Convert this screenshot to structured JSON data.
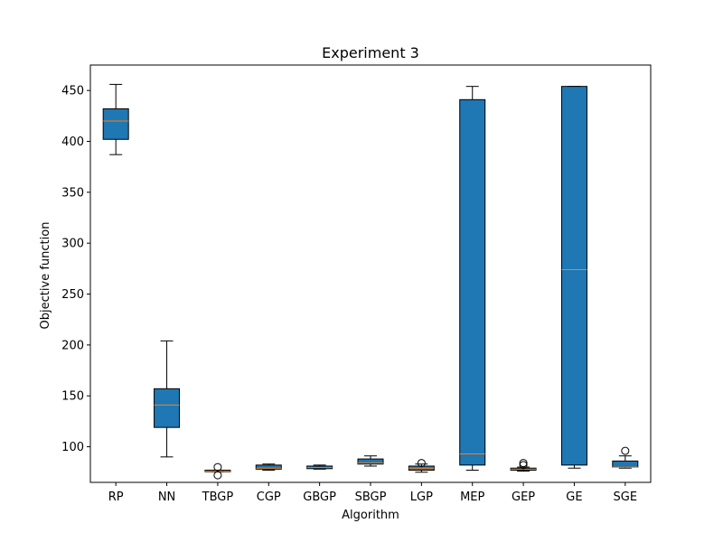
{
  "chart_data": {
    "type": "box",
    "title": "Experiment 3",
    "xlabel": "Algorithm",
    "ylabel": "Objective function",
    "ylim": [
      65,
      475
    ],
    "yticks": [
      100,
      150,
      200,
      250,
      300,
      350,
      400,
      450
    ],
    "box_color": "#1f77b4",
    "median_color": "#ff7f0e",
    "grid": false,
    "categories": [
      "RP",
      "NN",
      "TBGP",
      "CGP",
      "GBGP",
      "SBGP",
      "LGP",
      "MEP",
      "GEP",
      "GE",
      "SGE"
    ],
    "boxes": [
      {
        "label": "RP",
        "whisker_low": 387,
        "q1": 402,
        "median": 420,
        "q3": 432,
        "whisker_high": 456,
        "outliers": []
      },
      {
        "label": "NN",
        "whisker_low": 90,
        "q1": 119,
        "median": 141,
        "q3": 157,
        "whisker_high": 204,
        "outliers": []
      },
      {
        "label": "TBGP",
        "whisker_low": 75.5,
        "q1": 75.5,
        "median": 76,
        "q3": 77,
        "whisker_high": 77,
        "outliers": [
          80,
          72
        ]
      },
      {
        "label": "CGP",
        "whisker_low": 77,
        "q1": 78,
        "median": 79,
        "q3": 82,
        "whisker_high": 83,
        "outliers": []
      },
      {
        "label": "GBGP",
        "whisker_low": 78,
        "q1": 78.5,
        "median": 79.5,
        "q3": 81,
        "whisker_high": 82,
        "outliers": []
      },
      {
        "label": "SBGP",
        "whisker_low": 81,
        "q1": 83,
        "median": 84,
        "q3": 88,
        "whisker_high": 91,
        "outliers": []
      },
      {
        "label": "LGP",
        "whisker_low": 75,
        "q1": 77,
        "median": 79,
        "q3": 81,
        "whisker_high": 83,
        "outliers": [
          84
        ]
      },
      {
        "label": "MEP",
        "whisker_low": 77,
        "q1": 82,
        "median": 93,
        "q3": 441,
        "whisker_high": 454,
        "outliers": []
      },
      {
        "label": "GEP",
        "whisker_low": 76,
        "q1": 77,
        "median": 78,
        "q3": 79,
        "whisker_high": 80,
        "outliers": [
          82,
          84
        ]
      },
      {
        "label": "GE",
        "whisker_low": 79,
        "q1": 82,
        "median": 274,
        "q3": 454,
        "whisker_high": 454,
        "outliers": []
      },
      {
        "label": "SGE",
        "whisker_low": 79,
        "q1": 80,
        "median": 80,
        "q3": 86,
        "whisker_high": 91,
        "outliers": [
          96
        ]
      }
    ]
  }
}
